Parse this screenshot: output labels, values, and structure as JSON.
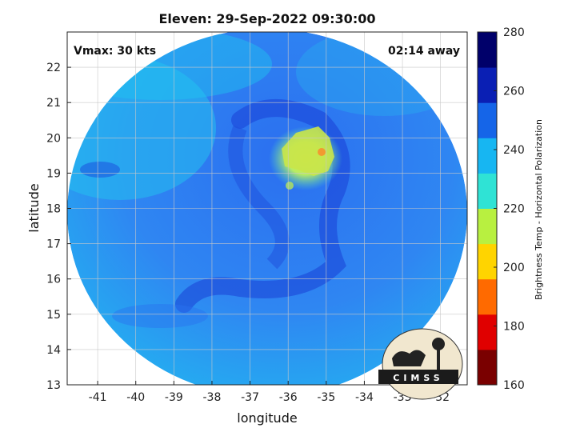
{
  "title": "Eleven: 29-Sep-2022 09:30:00",
  "vmax_label": "Vmax: 30 kts",
  "time_away_label": "02:14 away",
  "logo_text": "CIMSS",
  "map": {
    "xlabel": "longitude",
    "ylabel": "latitude",
    "xlim": [
      -41.8,
      -31.3
    ],
    "ylim": [
      13,
      23
    ],
    "xticks": [
      -41,
      -40,
      -39,
      -38,
      -37,
      -36,
      -35,
      -34,
      -33,
      -32
    ],
    "yticks": [
      13,
      14,
      15,
      16,
      17,
      18,
      19,
      20,
      21,
      22
    ],
    "grid": true,
    "swath_center": [
      -36.6,
      17.9
    ],
    "warm_core": {
      "center": [
        -35.6,
        19.4
      ],
      "min_brightness_temp": 200
    },
    "colors": {
      "background_swath": "#2f7ef2",
      "eye_wall": "#1a3fd6",
      "core_warm": "#c9e64a",
      "hot_spot": "#f29a30"
    }
  },
  "colorbar": {
    "label": "Brightness Temp - Horizontal Polarization",
    "min": 160,
    "max": 280,
    "ticks": [
      160,
      180,
      200,
      220,
      240,
      260,
      280
    ],
    "colors": [
      "#7a0000",
      "#e00000",
      "#ff6a00",
      "#ffd400",
      "#b8f040",
      "#2fe3d5",
      "#17b6f2",
      "#1565e8",
      "#0a1fb4",
      "#00006a"
    ]
  }
}
